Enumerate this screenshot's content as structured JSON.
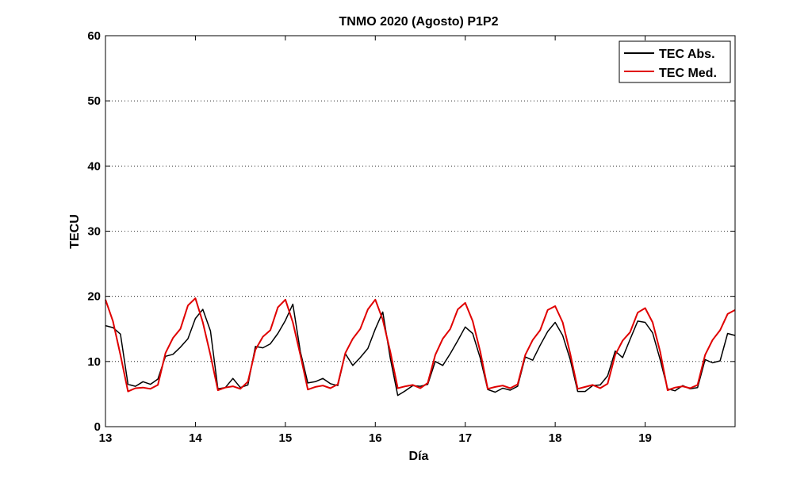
{
  "chart_data": {
    "type": "line",
    "title": "TNMO 2020 (Agosto) P1P2",
    "xlabel": "Día",
    "ylabel": "TECU",
    "xlim": [
      13,
      20
    ],
    "ylim": [
      0,
      60
    ],
    "xticks": [
      13,
      14,
      15,
      16,
      17,
      18,
      19
    ],
    "yticks": [
      0,
      10,
      20,
      30,
      40,
      50,
      60
    ],
    "grid": "horizontal-dotted",
    "legend_position": "top-right",
    "colors": {
      "TEC Abs.": "#000000",
      "TEC Med.": "#e00000"
    },
    "series": [
      {
        "name": "TEC Abs.",
        "color": "#000000",
        "x": [
          13.0,
          13.083,
          13.167,
          13.25,
          13.333,
          13.417,
          13.5,
          13.583,
          13.667,
          13.75,
          13.833,
          13.917,
          14.0,
          14.083,
          14.167,
          14.25,
          14.333,
          14.417,
          14.5,
          14.583,
          14.667,
          14.75,
          14.833,
          14.917,
          15.0,
          15.083,
          15.167,
          15.25,
          15.333,
          15.417,
          15.5,
          15.583,
          15.667,
          15.75,
          15.833,
          15.917,
          16.0,
          16.083,
          16.167,
          16.25,
          16.333,
          16.417,
          16.5,
          16.583,
          16.667,
          16.75,
          16.833,
          16.917,
          17.0,
          17.083,
          17.167,
          17.25,
          17.333,
          17.417,
          17.5,
          17.583,
          17.667,
          17.75,
          17.833,
          17.917,
          18.0,
          18.083,
          18.167,
          18.25,
          18.333,
          18.417,
          18.5,
          18.583,
          18.667,
          18.75,
          18.833,
          18.917,
          19.0,
          19.083,
          19.167,
          19.25,
          19.333,
          19.417,
          19.5,
          19.583,
          19.667,
          19.75,
          19.833,
          19.917,
          20.0
        ],
        "y": [
          15.5,
          15.2,
          14.2,
          6.5,
          6.2,
          6.9,
          6.5,
          7.3,
          10.8,
          11.1,
          12.2,
          13.5,
          16.6,
          18.0,
          14.7,
          5.8,
          6.0,
          7.4,
          6.0,
          6.4,
          12.3,
          12.1,
          12.7,
          14.3,
          16.3,
          18.8,
          11.5,
          6.7,
          6.9,
          7.4,
          6.6,
          6.3,
          11.2,
          9.4,
          10.6,
          12.0,
          15.0,
          17.6,
          10.5,
          4.8,
          5.5,
          6.3,
          6.2,
          6.5,
          10.0,
          9.4,
          11.2,
          13.2,
          15.3,
          14.3,
          10.5,
          5.7,
          5.3,
          5.9,
          5.6,
          6.2,
          10.7,
          10.2,
          12.5,
          14.6,
          16.0,
          14.0,
          10.3,
          5.4,
          5.4,
          6.3,
          6.4,
          7.8,
          11.6,
          10.6,
          13.4,
          16.2,
          16.0,
          14.4,
          10.3,
          5.8,
          5.5,
          6.3,
          5.8,
          6.0,
          10.3,
          9.8,
          10.1,
          14.3,
          14.0
        ]
      },
      {
        "name": "TEC Med.",
        "color": "#e00000",
        "x": [
          13.0,
          13.083,
          13.167,
          13.25,
          13.333,
          13.417,
          13.5,
          13.583,
          13.667,
          13.75,
          13.833,
          13.917,
          14.0,
          14.083,
          14.167,
          14.25,
          14.333,
          14.417,
          14.5,
          14.583,
          14.667,
          14.75,
          14.833,
          14.917,
          15.0,
          15.083,
          15.167,
          15.25,
          15.333,
          15.417,
          15.5,
          15.583,
          15.667,
          15.75,
          15.833,
          15.917,
          16.0,
          16.083,
          16.167,
          16.25,
          16.333,
          16.417,
          16.5,
          16.583,
          16.667,
          16.75,
          16.833,
          16.917,
          17.0,
          17.083,
          17.167,
          17.25,
          17.333,
          17.417,
          17.5,
          17.583,
          17.667,
          17.75,
          17.833,
          17.917,
          18.0,
          18.083,
          18.167,
          18.25,
          18.333,
          18.417,
          18.5,
          18.583,
          18.667,
          18.75,
          18.833,
          18.917,
          19.0,
          19.083,
          19.167,
          19.25,
          19.333,
          19.417,
          19.5,
          19.583,
          19.667,
          19.75,
          19.833,
          19.917,
          20.0
        ],
        "y": [
          19.5,
          16.2,
          11.0,
          5.4,
          5.9,
          6.0,
          5.8,
          6.4,
          11.3,
          13.6,
          15.0,
          18.6,
          19.7,
          16.0,
          11.0,
          5.6,
          6.0,
          6.2,
          5.8,
          6.9,
          11.8,
          13.8,
          14.8,
          18.3,
          19.5,
          16.0,
          11.0,
          5.7,
          6.1,
          6.3,
          5.9,
          6.5,
          11.3,
          13.5,
          15.0,
          18.0,
          19.5,
          16.4,
          11.5,
          5.9,
          6.2,
          6.4,
          5.9,
          6.7,
          11.0,
          13.5,
          15.0,
          18.0,
          19.0,
          16.2,
          11.5,
          5.8,
          6.1,
          6.3,
          5.9,
          6.5,
          11.0,
          13.3,
          14.8,
          17.9,
          18.5,
          16.0,
          11.2,
          5.8,
          6.1,
          6.4,
          5.9,
          6.6,
          11.0,
          13.2,
          14.5,
          17.5,
          18.2,
          16.0,
          11.5,
          5.6,
          6.0,
          6.2,
          5.9,
          6.4,
          11.0,
          13.3,
          14.8,
          17.3,
          17.9
        ]
      }
    ]
  }
}
